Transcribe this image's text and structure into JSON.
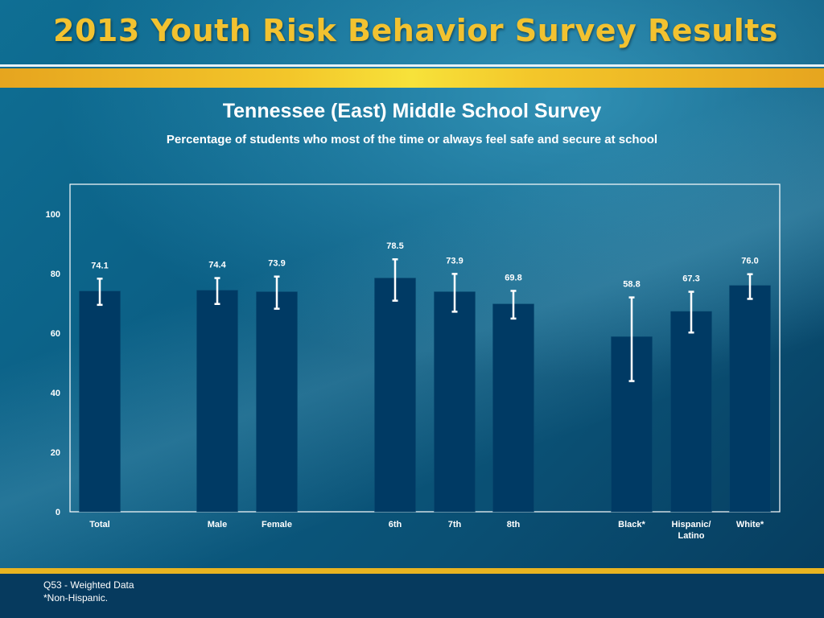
{
  "header": {
    "title": "2013 Youth Risk Behavior Survey Results"
  },
  "chart_data": {
    "type": "bar",
    "title": "Tennessee (East) Middle School Survey",
    "subtitle": "Percentage of students who most of the time or always feel safe and secure at school",
    "ylim": [
      0,
      110
    ],
    "yticks": [
      "0",
      "20",
      "40",
      "60",
      "80",
      "100"
    ],
    "grid": false,
    "categories": [
      {
        "label": "Total",
        "value": 74.1,
        "label_text": "74.1",
        "ci": [
          69.5,
          78.3
        ],
        "group": 0
      },
      {
        "label": "Male",
        "value": 74.4,
        "label_text": "74.4",
        "ci": [
          69.8,
          78.5
        ],
        "group": 1
      },
      {
        "label": "Female",
        "value": 73.9,
        "label_text": "73.9",
        "ci": [
          68.2,
          79.0
        ],
        "group": 1
      },
      {
        "label": "6th",
        "value": 78.5,
        "label_text": "78.5",
        "ci": [
          70.9,
          84.8
        ],
        "group": 2
      },
      {
        "label": "7th",
        "value": 73.9,
        "label_text": "73.9",
        "ci": [
          67.2,
          79.9
        ],
        "group": 2
      },
      {
        "label": "8th",
        "value": 69.8,
        "label_text": "69.8",
        "ci": [
          64.9,
          74.2
        ],
        "group": 2
      },
      {
        "label": "Black*",
        "value": 58.8,
        "label_text": "58.8",
        "ci": [
          43.9,
          72.0
        ],
        "group": 3
      },
      {
        "label": "Hispanic/\nLatino",
        "value": 67.3,
        "label_text": "67.3",
        "ci": [
          60.2,
          73.9
        ],
        "group": 3
      },
      {
        "label": "White*",
        "value": 76.0,
        "label_text": "76.0",
        "ci": [
          71.5,
          79.8
        ],
        "group": 3
      }
    ]
  },
  "footnotes": [
    "Q53 - Weighted Data",
    "*Non-Hispanic."
  ],
  "colors": {
    "bar": "#003a64",
    "accent_gold": "#f2c230",
    "text": "#ffffff"
  }
}
